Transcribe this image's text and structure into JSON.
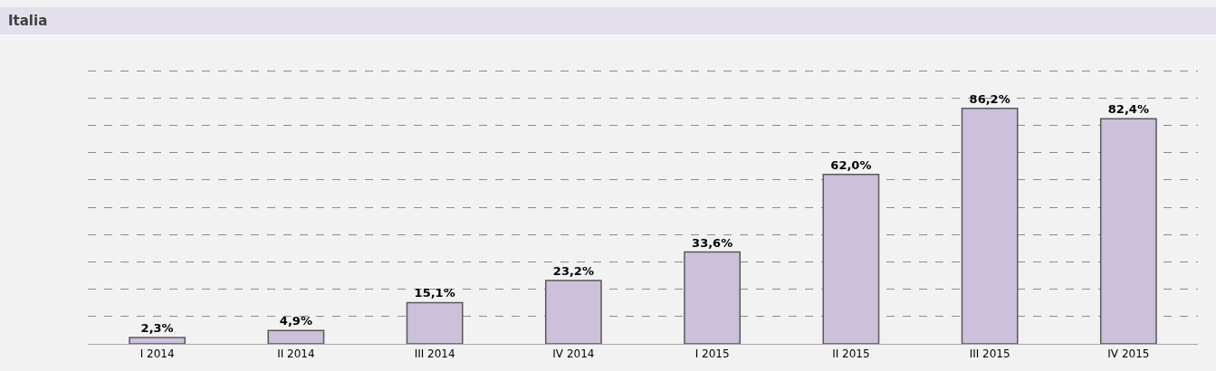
{
  "chart_data": {
    "type": "bar",
    "title": "Italia",
    "categories": [
      "I 2014",
      "II 2014",
      "III 2014",
      "IV 2014",
      "I 2015",
      "II 2015",
      "III 2015",
      "IV 2015"
    ],
    "values": [
      2.3,
      4.9,
      15.1,
      23.2,
      33.6,
      62.0,
      86.2,
      82.4
    ],
    "value_labels": [
      "2,3%",
      "4,9%",
      "15,1%",
      "23,2%",
      "33,6%",
      "62,0%",
      "86,2%",
      "82,4%"
    ],
    "color": "#ccc0da",
    "yticks": [
      {
        "value": 0,
        "label": null
      },
      {
        "value": 10,
        "label": null
      },
      {
        "value": 20,
        "label": null
      },
      {
        "value": 30,
        "label": null
      },
      {
        "value": 40,
        "label": null
      },
      {
        "value": 50,
        "label": null
      },
      {
        "value": 60,
        "label": null
      },
      {
        "value": 70,
        "label": null
      },
      {
        "value": 80,
        "label": null
      },
      {
        "value": 90,
        "label": null
      },
      {
        "value": 100,
        "label": null
      }
    ],
    "tick_labels": "x",
    "grid": "y"
  }
}
